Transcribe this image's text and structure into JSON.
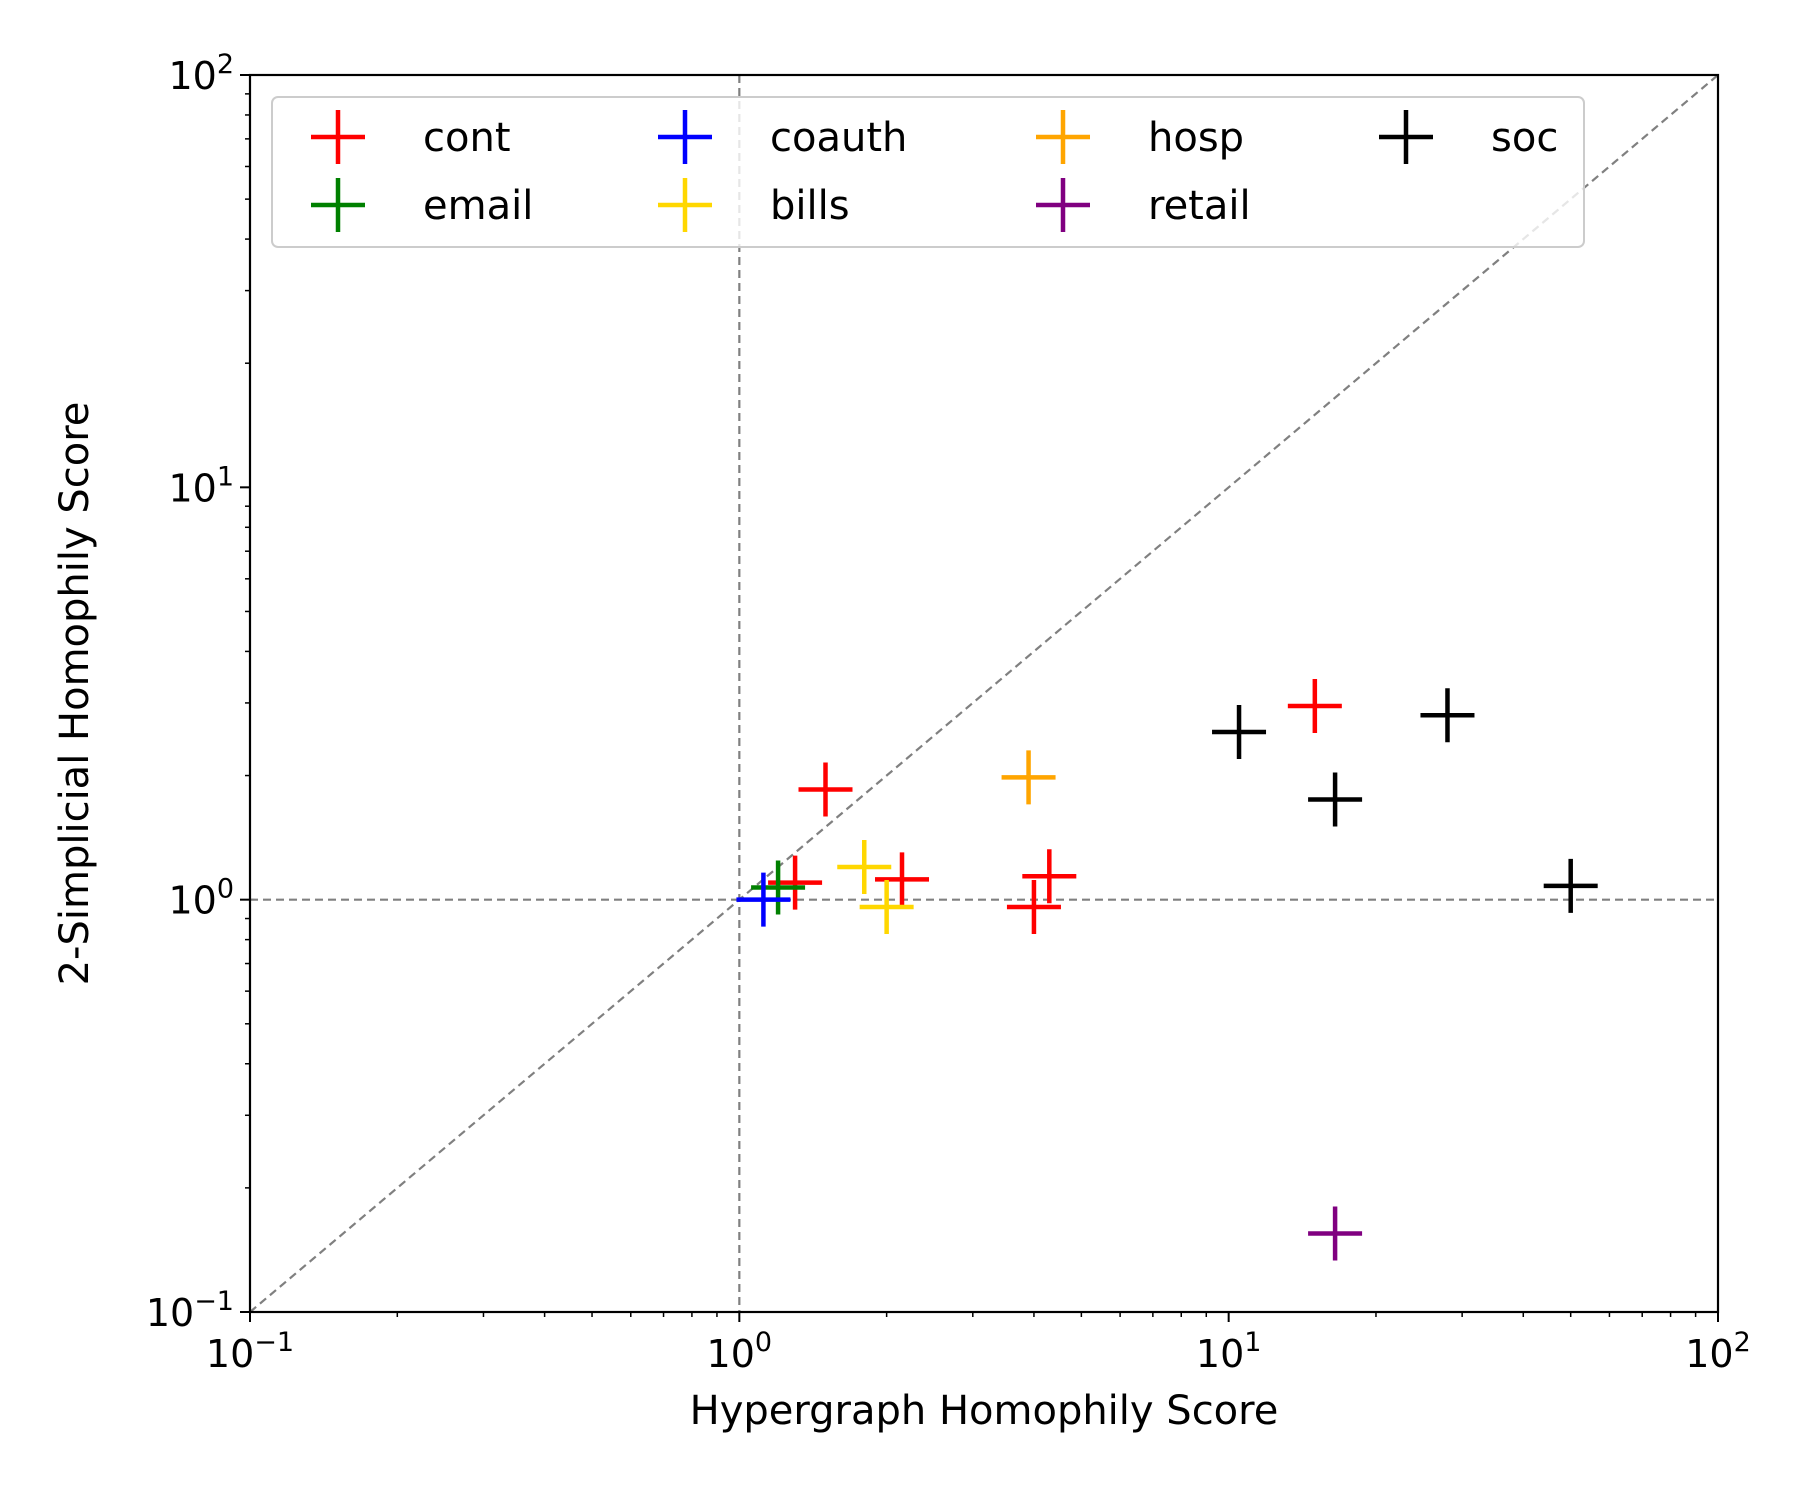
{
  "chart_data": {
    "type": "scatter",
    "title": "",
    "xlabel": "Hypergraph Homophily Score",
    "ylabel": "2-Simplicial Homophily Score",
    "xscale": "log",
    "yscale": "log",
    "xlim": [
      0.1,
      100
    ],
    "ylim": [
      0.1,
      100
    ],
    "x_ticks": [
      {
        "base": "10",
        "exp": "−1",
        "value": 0.1
      },
      {
        "base": "10",
        "exp": "0",
        "value": 1
      },
      {
        "base": "10",
        "exp": "1",
        "value": 10
      },
      {
        "base": "10",
        "exp": "2",
        "value": 100
      }
    ],
    "y_ticks": [
      {
        "base": "10",
        "exp": "−1",
        "value": 0.1
      },
      {
        "base": "10",
        "exp": "0",
        "value": 1
      },
      {
        "base": "10",
        "exp": "1",
        "value": 10
      },
      {
        "base": "10",
        "exp": "2",
        "value": 100
      }
    ],
    "grid": false,
    "reference_lines": [
      "y = x (dashed gray)",
      "x = 1 (dashed gray)",
      "y = 1 (dashed gray)"
    ],
    "marker": "plus",
    "legend": {
      "placement": "top",
      "columns": 4
    },
    "series": [
      {
        "name": "cont",
        "color": "#ff0000",
        "points": [
          [
            1.3,
            1.1
          ],
          [
            1.5,
            1.85
          ],
          [
            2.15,
            1.12
          ],
          [
            4.0,
            0.96
          ],
          [
            4.3,
            1.14
          ],
          [
            15.0,
            2.95
          ]
        ]
      },
      {
        "name": "email",
        "color": "#008000",
        "points": [
          [
            1.2,
            1.07
          ]
        ]
      },
      {
        "name": "coauth",
        "color": "#0000ff",
        "points": [
          [
            1.12,
            1.0
          ]
        ]
      },
      {
        "name": "bills",
        "color": "#ffd700",
        "points": [
          [
            1.8,
            1.2
          ],
          [
            2.0,
            0.96
          ]
        ]
      },
      {
        "name": "hosp",
        "color": "#ffa500",
        "points": [
          [
            3.9,
            1.98
          ]
        ]
      },
      {
        "name": "retail",
        "color": "#800080",
        "points": [
          [
            16.5,
            0.155
          ]
        ]
      },
      {
        "name": "soc",
        "color": "#000000",
        "points": [
          [
            10.5,
            2.55
          ],
          [
            16.5,
            1.75
          ],
          [
            28.0,
            2.8
          ],
          [
            50.0,
            1.08
          ]
        ]
      }
    ]
  }
}
